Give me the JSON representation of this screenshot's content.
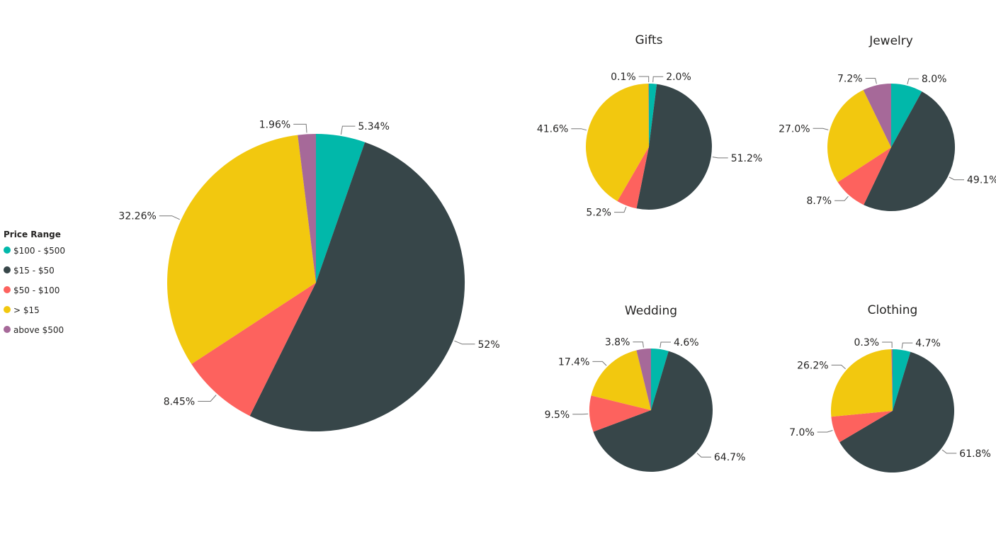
{
  "legend": {
    "title": "Price Range",
    "items": [
      {
        "label": "$100 - $500",
        "color": "#01B8AA"
      },
      {
        "label": "$15 - $50",
        "color": "#374649"
      },
      {
        "label": "$50 - $100",
        "color": "#FD625E"
      },
      {
        "label": "> $15",
        "color": "#F2C80F"
      },
      {
        "label": "above $500",
        "color": "#A66999"
      }
    ]
  },
  "chart_data": [
    {
      "type": "pie",
      "title": "",
      "categories": [
        "$100 - $500",
        "$15 - $50",
        "$50 - $100",
        "> $15",
        "above $500"
      ],
      "values": [
        5.34,
        52.0,
        8.45,
        32.26,
        1.96
      ],
      "labels": [
        "5.34%",
        "52%",
        "8.45%",
        "32.26%",
        "1.96%"
      ],
      "colors": [
        "#01B8AA",
        "#374649",
        "#FD625E",
        "#F2C80F",
        "#A66999"
      ]
    },
    {
      "type": "pie",
      "title": "Gifts",
      "categories": [
        "$100 - $500",
        "$15 - $50",
        "$50 - $100",
        "> $15",
        "above $500"
      ],
      "values": [
        2.0,
        51.2,
        5.2,
        41.6,
        0.1
      ],
      "labels": [
        "2.0%",
        "51.2%",
        "5.2%",
        "41.6%",
        "0.1%"
      ],
      "colors": [
        "#01B8AA",
        "#374649",
        "#FD625E",
        "#F2C80F",
        "#A66999"
      ]
    },
    {
      "type": "pie",
      "title": "Jewelry",
      "categories": [
        "$100 - $500",
        "$15 - $50",
        "$50 - $100",
        "> $15",
        "above $500"
      ],
      "values": [
        8.0,
        49.1,
        8.7,
        27.0,
        7.2
      ],
      "labels": [
        "8.0%",
        "49.1%",
        "8.7%",
        "27.0%",
        "7.2%"
      ],
      "colors": [
        "#01B8AA",
        "#374649",
        "#FD625E",
        "#F2C80F",
        "#A66999"
      ]
    },
    {
      "type": "pie",
      "title": "Wedding",
      "categories": [
        "$100 - $500",
        "$15 - $50",
        "$50 - $100",
        "> $15",
        "above $500"
      ],
      "values": [
        4.6,
        64.7,
        9.5,
        17.4,
        3.8
      ],
      "labels": [
        "4.6%",
        "64.7%",
        "9.5%",
        "17.4%",
        "3.8%"
      ],
      "colors": [
        "#01B8AA",
        "#374649",
        "#FD625E",
        "#F2C80F",
        "#A66999"
      ]
    },
    {
      "type": "pie",
      "title": "Clothing",
      "categories": [
        "$100 - $500",
        "$15 - $50",
        "$50 - $100",
        "> $15",
        "above $500"
      ],
      "values": [
        4.7,
        61.8,
        7.0,
        26.2,
        0.3
      ],
      "labels": [
        "4.7%",
        "61.8%",
        "7.0%",
        "26.2%",
        "0.3%"
      ],
      "colors": [
        "#01B8AA",
        "#374649",
        "#FD625E",
        "#F2C80F",
        "#A66999"
      ]
    }
  ]
}
